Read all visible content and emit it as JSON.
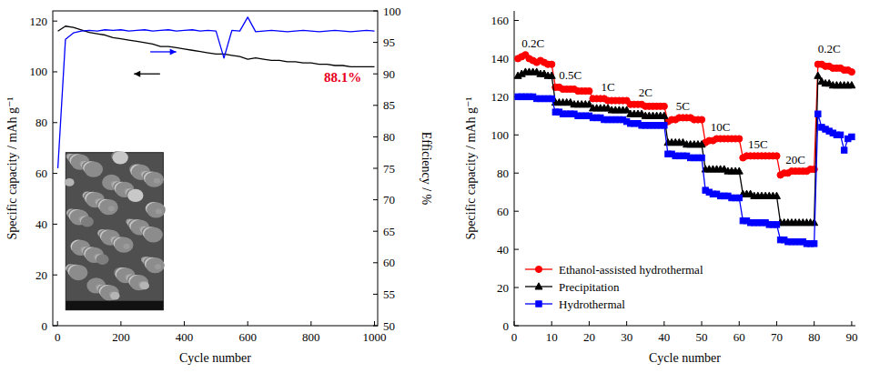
{
  "chart_data": [
    {
      "type": "line",
      "xlabel": "Cycle number",
      "ylabel": "Specific capacity / mAh g⁻¹",
      "y2label": "Efficiency / %",
      "x": [
        1,
        25,
        50,
        75,
        100,
        125,
        150,
        175,
        200,
        225,
        250,
        275,
        300,
        325,
        350,
        375,
        400,
        425,
        450,
        475,
        500,
        525,
        550,
        575,
        600,
        625,
        650,
        675,
        700,
        725,
        750,
        775,
        800,
        825,
        850,
        875,
        900,
        925,
        950,
        975,
        1000
      ],
      "xlim": [
        -15,
        1010
      ],
      "xticks": [
        0,
        200,
        400,
        600,
        800,
        1000
      ],
      "ylim": [
        0,
        124
      ],
      "yticks": [
        0,
        20,
        40,
        60,
        80,
        100,
        120
      ],
      "y2lim": [
        50,
        100
      ],
      "y2ticks": [
        50,
        55,
        60,
        65,
        70,
        75,
        80,
        85,
        90,
        95,
        100
      ],
      "series": [
        {
          "color": "#000000",
          "values": [
            116,
            118,
            117.5,
            116.5,
            115.5,
            115,
            114.5,
            113.5,
            113,
            112.5,
            112,
            111.5,
            111,
            110,
            110,
            109.5,
            109,
            108.5,
            108,
            107.5,
            107,
            107,
            106.5,
            106,
            105,
            105.5,
            105,
            104.5,
            104.5,
            104,
            104,
            103.5,
            103.5,
            103,
            103,
            102.5,
            102.5,
            102,
            102,
            102,
            102
          ]
        },
        {
          "color": "#0000ff",
          "axis": "y2",
          "values": [
            75,
            95.5,
            96.5,
            96.8,
            96.9,
            96.8,
            97,
            96.9,
            97,
            96.8,
            96.9,
            97,
            96.8,
            96.9,
            97,
            96.8,
            96.9,
            97,
            96.8,
            96.9,
            96.8,
            92.5,
            96.9,
            96.8,
            99,
            96.7,
            96.8,
            96.9,
            96.8,
            96.7,
            96.8,
            96.9,
            96.8,
            96.7,
            96.8,
            96.9,
            96.8,
            96.7,
            96.8,
            96.9,
            96.8
          ]
        }
      ],
      "annotations": [
        {
          "text": "88.1%",
          "x": 900,
          "y": 96,
          "color": "#e8001c"
        }
      ]
    },
    {
      "type": "line",
      "xlabel": "Cycle number",
      "ylabel": "Specific capacity / mAh g⁻¹",
      "x": [
        1,
        2,
        3,
        4,
        5,
        6,
        7,
        8,
        9,
        10,
        11,
        12,
        13,
        14,
        15,
        16,
        17,
        18,
        19,
        20,
        21,
        22,
        23,
        24,
        25,
        26,
        27,
        28,
        29,
        30,
        31,
        32,
        33,
        34,
        35,
        36,
        37,
        38,
        39,
        40,
        41,
        42,
        43,
        44,
        45,
        46,
        47,
        48,
        49,
        50,
        51,
        52,
        53,
        54,
        55,
        56,
        57,
        58,
        59,
        60,
        61,
        62,
        63,
        64,
        65,
        66,
        67,
        68,
        69,
        70,
        71,
        72,
        73,
        74,
        75,
        76,
        77,
        78,
        79,
        80,
        81,
        82,
        83,
        84,
        85,
        86,
        87,
        88,
        89,
        90
      ],
      "xlim": [
        0,
        91
      ],
      "xticks": [
        0,
        10,
        20,
        30,
        40,
        50,
        60,
        70,
        80,
        90
      ],
      "ylim": [
        0,
        165
      ],
      "yticks": [
        0,
        20,
        40,
        60,
        80,
        100,
        120,
        140,
        160
      ],
      "legend": "lower left",
      "series": [
        {
          "name": "Ethanol-assisted hydrothermal",
          "color": "#ff0000",
          "marker": "circle",
          "values": [
            140,
            141,
            142,
            140,
            139,
            138,
            139,
            138,
            137,
            137,
            125,
            125,
            124,
            124,
            124,
            124,
            123,
            123,
            123,
            123,
            119,
            119,
            119,
            119,
            118,
            118,
            118,
            118,
            118,
            118,
            116,
            116,
            116,
            116,
            115,
            115,
            115,
            115,
            115,
            115,
            107,
            108,
            108,
            109,
            109,
            109,
            109,
            108,
            108,
            108,
            96,
            97,
            97,
            98,
            98,
            98,
            98,
            98,
            98,
            98,
            88,
            89,
            89,
            89,
            89,
            89,
            89,
            89,
            89,
            89,
            79,
            80,
            80,
            81,
            81,
            81,
            81,
            81,
            82,
            82,
            137,
            137,
            136,
            136,
            135,
            135,
            135,
            134,
            134,
            133
          ]
        },
        {
          "name": "Precipitation",
          "color": "#000000",
          "marker": "triangle",
          "values": [
            131,
            132,
            133,
            133,
            133,
            133,
            132,
            132,
            131,
            131,
            117,
            117,
            117,
            117,
            117,
            116,
            116,
            116,
            116,
            116,
            114,
            114,
            114,
            114,
            114,
            113,
            113,
            113,
            113,
            113,
            111,
            111,
            111,
            111,
            110,
            110,
            110,
            110,
            110,
            110,
            96,
            96,
            96,
            96,
            96,
            95,
            95,
            95,
            95,
            95,
            82,
            82,
            82,
            82,
            82,
            82,
            81,
            81,
            81,
            81,
            69,
            69,
            69,
            68,
            68,
            68,
            68,
            68,
            68,
            68,
            54,
            54,
            54,
            54,
            54,
            54,
            54,
            54,
            54,
            54,
            131,
            128,
            127,
            127,
            126,
            126,
            126,
            126,
            126,
            126
          ]
        },
        {
          "name": "Hydrothermal",
          "color": "#0000ff",
          "marker": "square",
          "values": [
            120,
            120,
            120,
            120,
            120,
            119,
            119,
            119,
            119,
            119,
            112,
            112,
            111,
            111,
            111,
            111,
            110,
            110,
            110,
            110,
            109,
            109,
            109,
            108,
            108,
            108,
            108,
            108,
            108,
            107,
            106,
            106,
            106,
            105,
            105,
            105,
            105,
            105,
            105,
            105,
            90,
            90,
            89,
            89,
            89,
            89,
            88,
            88,
            88,
            88,
            71,
            70,
            69,
            69,
            68,
            68,
            68,
            67,
            67,
            67,
            55,
            55,
            54,
            54,
            54,
            54,
            54,
            53,
            53,
            53,
            45,
            45,
            44,
            44,
            44,
            44,
            44,
            43,
            43,
            43,
            111,
            104,
            103,
            102,
            101,
            100,
            100,
            92,
            98,
            99
          ]
        }
      ],
      "annotations": [
        {
          "text": "0.2C",
          "x": 5,
          "y": 146
        },
        {
          "text": "0.5C",
          "x": 15,
          "y": 129
        },
        {
          "text": "1C",
          "x": 25,
          "y": 123
        },
        {
          "text": "2C",
          "x": 35,
          "y": 120
        },
        {
          "text": "5C",
          "x": 45,
          "y": 113
        },
        {
          "text": "10C",
          "x": 55,
          "y": 102
        },
        {
          "text": "15C",
          "x": 65,
          "y": 93
        },
        {
          "text": "20C",
          "x": 75,
          "y": 85
        },
        {
          "text": "0.2C",
          "x": 84,
          "y": 143
        }
      ]
    }
  ]
}
